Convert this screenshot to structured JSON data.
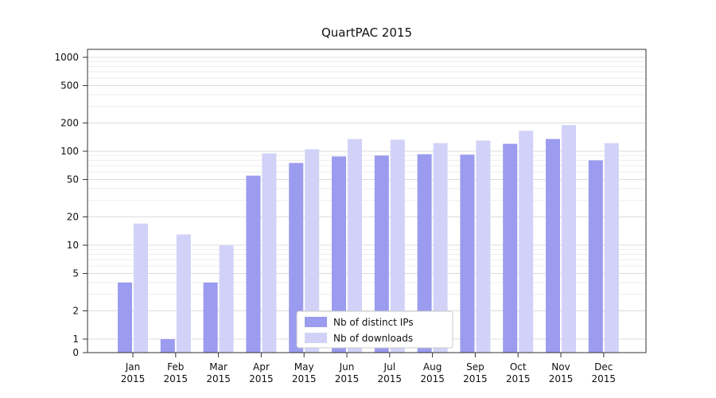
{
  "chart_data": {
    "type": "bar",
    "title": "QuartPAC 2015",
    "yscale": "symlog",
    "yticks": [
      0,
      1,
      2,
      5,
      10,
      20,
      50,
      100,
      200,
      500,
      1000
    ],
    "ylim": [
      0,
      1200
    ],
    "grid": "horizontal major and minor gridlines on",
    "legend_position": "lower center",
    "categories": [
      "Jan",
      "Feb",
      "Mar",
      "Apr",
      "May",
      "Jun",
      "Jul",
      "Aug",
      "Sep",
      "Oct",
      "Nov",
      "Dec"
    ],
    "year_label": "2015",
    "series": [
      {
        "name": "Nb of distinct IPs",
        "color": "#9b9bef",
        "values": [
          4,
          1,
          4,
          55,
          75,
          88,
          90,
          93,
          92,
          120,
          135,
          80
        ]
      },
      {
        "name": "Nb of downloads",
        "color": "#d2d2f8",
        "values": [
          17,
          13,
          10,
          95,
          105,
          135,
          133,
          122,
          130,
          165,
          190,
          122
        ]
      }
    ]
  },
  "colors": {
    "major_grid": "#dcdcdc",
    "minor_grid": "#ededed",
    "spine": "#333333",
    "legend_border": "#c9c9c9",
    "legend_bg": "#ffffff"
  }
}
